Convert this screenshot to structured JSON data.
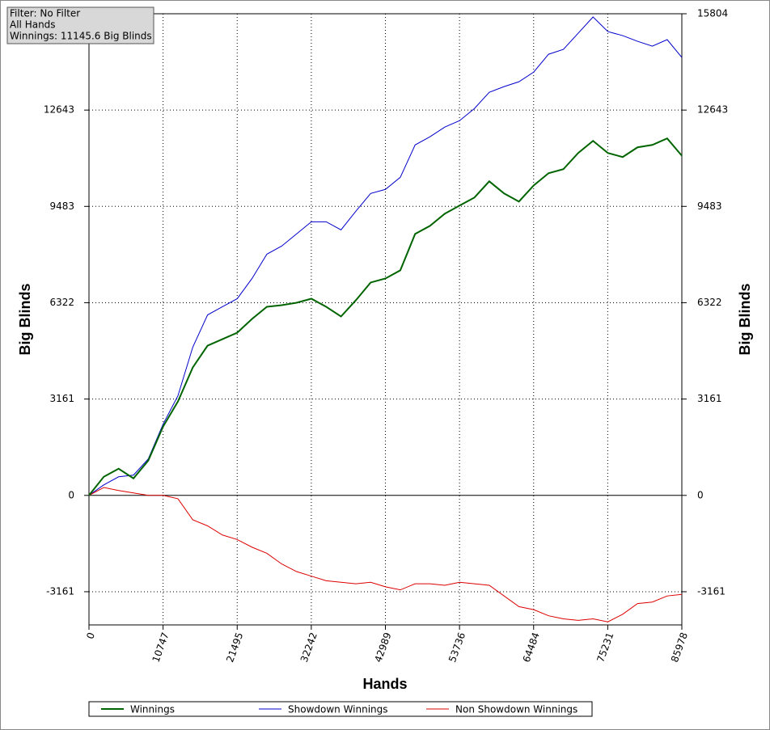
{
  "info": {
    "filter": "Filter: No Filter",
    "hands": "All Hands",
    "winnings": "Winnings: 11145.6 Big Blinds"
  },
  "chart_data": {
    "type": "line",
    "y_label": "Big Blinds",
    "y2_label": "Big Blinds",
    "x_label": "Hands",
    "xlim": [
      0,
      85978
    ],
    "xticks": [
      0,
      10747,
      21495,
      32242,
      42989,
      53736,
      64484,
      75231,
      85978
    ],
    "ylim": [
      -4250,
      15804
    ],
    "yticks": [
      -3161,
      0,
      3161,
      6322,
      9483,
      12643
    ],
    "y2lim": [
      -4250,
      15804
    ],
    "y2ticks": [
      -3161,
      0,
      3161,
      6322,
      9483,
      12643,
      15804
    ],
    "grid": true,
    "x": [
      0,
      2150,
      4300,
      6450,
      8600,
      10750,
      12900,
      15050,
      17200,
      19350,
      21500,
      23650,
      25800,
      27950,
      30100,
      32250,
      34400,
      36550,
      38700,
      40850,
      43000,
      45150,
      47300,
      49450,
      51600,
      53750,
      55900,
      58050,
      60200,
      62350,
      64500,
      66650,
      68800,
      70950,
      73100,
      75250,
      77400,
      79550,
      81700,
      83850,
      85978
    ],
    "series": [
      {
        "name": "Winnings",
        "color": "#006400",
        "values": [
          0,
          611,
          876,
          558,
          1142,
          2258,
          3081,
          4197,
          4914,
          5126,
          5339,
          5790,
          6189,
          6242,
          6321,
          6454,
          6189,
          5870,
          6401,
          6985,
          7118,
          7384,
          8579,
          8844,
          9243,
          9509,
          9774,
          10305,
          9907,
          9641,
          10172,
          10571,
          10704,
          11235,
          11633,
          11235,
          11102,
          11421,
          11500,
          11713,
          11146
        ]
      },
      {
        "name": "Showdown Winnings",
        "color": "#0000cc",
        "values": [
          0,
          345,
          611,
          664,
          1195,
          2337,
          3267,
          4861,
          5923,
          6189,
          6454,
          7118,
          7915,
          8181,
          8579,
          8977,
          8977,
          8712,
          9323,
          9907,
          10040,
          10438,
          11500,
          11766,
          12085,
          12297,
          12695,
          13227,
          13413,
          13572,
          13891,
          14475,
          14635,
          15166,
          15697,
          15219,
          15086,
          14900,
          14741,
          14954,
          14369
        ]
      },
      {
        "name": "Non Showdown Winnings",
        "color": "#dd0000",
        "values": [
          0,
          260,
          160,
          80,
          0,
          0,
          -110,
          -800,
          -1000,
          -1300,
          -1450,
          -1700,
          -1900,
          -2250,
          -2500,
          -2650,
          -2800,
          -2850,
          -2900,
          -2850,
          -3000,
          -3100,
          -2900,
          -2900,
          -2950,
          -2850,
          -2900,
          -2950,
          -3300,
          -3650,
          -3750,
          -3950,
          -4050,
          -4100,
          -4050,
          -4150,
          -3900,
          -3550,
          -3500,
          -3300,
          -3250
        ]
      }
    ]
  }
}
